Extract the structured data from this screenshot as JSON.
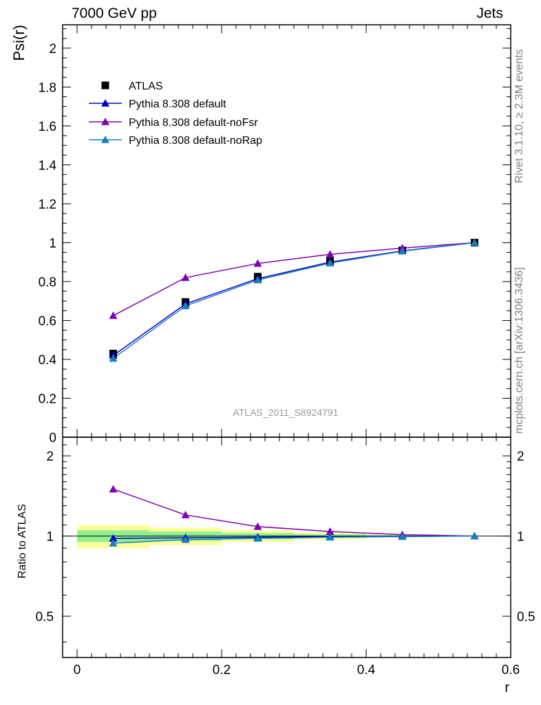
{
  "header": {
    "left": "7000 GeV pp",
    "right": "Jets"
  },
  "side_labels": {
    "rivet": "Rivet 3.1.10, ≥ 2.3M events",
    "mcplots": "mcplots.cern.ch [arXiv:1306.3436]"
  },
  "watermark": "ATLAS_2011_S8924791",
  "colors": {
    "atlas": "#000000",
    "default": "#0000cc",
    "noFsr": "#7b00b4",
    "noRap": "#1580b8",
    "band_inner": "#8ff08f",
    "band_outer": "#fdfd9b"
  },
  "chart_data": [
    {
      "type": "line",
      "panel": "main",
      "ylabel": "Psi(r)",
      "xlim": [
        -0.02,
        0.6
      ],
      "ylim": [
        0,
        2.12
      ],
      "x_ticks": [
        0,
        0.2,
        0.4,
        0.6
      ],
      "y_ticks": [
        0,
        0.2,
        0.4,
        0.6,
        0.8,
        1,
        1.2,
        1.4,
        1.6,
        1.8,
        2
      ],
      "y_tick_labels": [
        "0",
        "0.2",
        "0.4",
        "0.6",
        "0.8",
        "1",
        "1.2",
        "1.4",
        "1.6",
        "1.8",
        "2"
      ],
      "x": [
        0.05,
        0.15,
        0.25,
        0.35,
        0.45,
        0.55
      ],
      "legend_position": "top-left",
      "series": [
        {
          "name": "ATLAS",
          "marker": "square",
          "values": [
            0.43,
            0.695,
            0.825,
            0.905,
            0.96,
            1.0
          ]
        },
        {
          "name": "Pythia 8.308 default",
          "marker": "triangle",
          "values": [
            0.42,
            0.685,
            0.815,
            0.9,
            0.958,
            1.0
          ]
        },
        {
          "name": "Pythia 8.308 default-noFsr",
          "marker": "triangle",
          "values": [
            0.625,
            0.82,
            0.893,
            0.94,
            0.972,
            1.0
          ]
        },
        {
          "name": "Pythia 8.308 default-noRap",
          "marker": "triangle",
          "values": [
            0.405,
            0.675,
            0.808,
            0.895,
            0.956,
            1.0
          ]
        }
      ]
    },
    {
      "type": "line",
      "panel": "ratio",
      "xlabel": "r",
      "ylabel": "Ratio to ATLAS",
      "xlim": [
        -0.02,
        0.6
      ],
      "ylim": [
        0.35,
        2.35
      ],
      "y_scale": "log",
      "x_ticks": [
        0,
        0.2,
        0.4,
        0.6
      ],
      "x_tick_labels": [
        "0",
        "0.2",
        "0.4",
        "0.6"
      ],
      "y_ticks": [
        0.5,
        1,
        2
      ],
      "y_tick_labels": [
        "0.5",
        "1",
        "2"
      ],
      "x": [
        0.05,
        0.15,
        0.25,
        0.35,
        0.45,
        0.55
      ],
      "uncertainty_bands": {
        "bin_edges": [
          0,
          0.1,
          0.2,
          0.3,
          0.4,
          0.5,
          0.6
        ],
        "inner": [
          [
            0.95,
            1.05
          ],
          [
            0.96,
            1.04
          ],
          [
            0.975,
            1.025
          ],
          [
            0.985,
            1.015
          ],
          [
            0.993,
            1.007
          ],
          [
            0.998,
            1.002
          ]
        ],
        "outer": [
          [
            0.9,
            1.1
          ],
          [
            0.925,
            1.075
          ],
          [
            0.95,
            1.05
          ],
          [
            0.97,
            1.03
          ],
          [
            0.988,
            1.012
          ],
          [
            0.996,
            1.004
          ]
        ]
      },
      "series": [
        {
          "name": "Pythia 8.308 default",
          "values": [
            0.98,
            0.985,
            0.99,
            0.995,
            0.998,
            1.0
          ]
        },
        {
          "name": "Pythia 8.308 default-noFsr",
          "values": [
            1.5,
            1.2,
            1.085,
            1.04,
            1.012,
            1.0
          ]
        },
        {
          "name": "Pythia 8.308 default-noRap",
          "values": [
            0.94,
            0.97,
            0.98,
            0.99,
            0.995,
            1.0
          ]
        }
      ]
    }
  ]
}
